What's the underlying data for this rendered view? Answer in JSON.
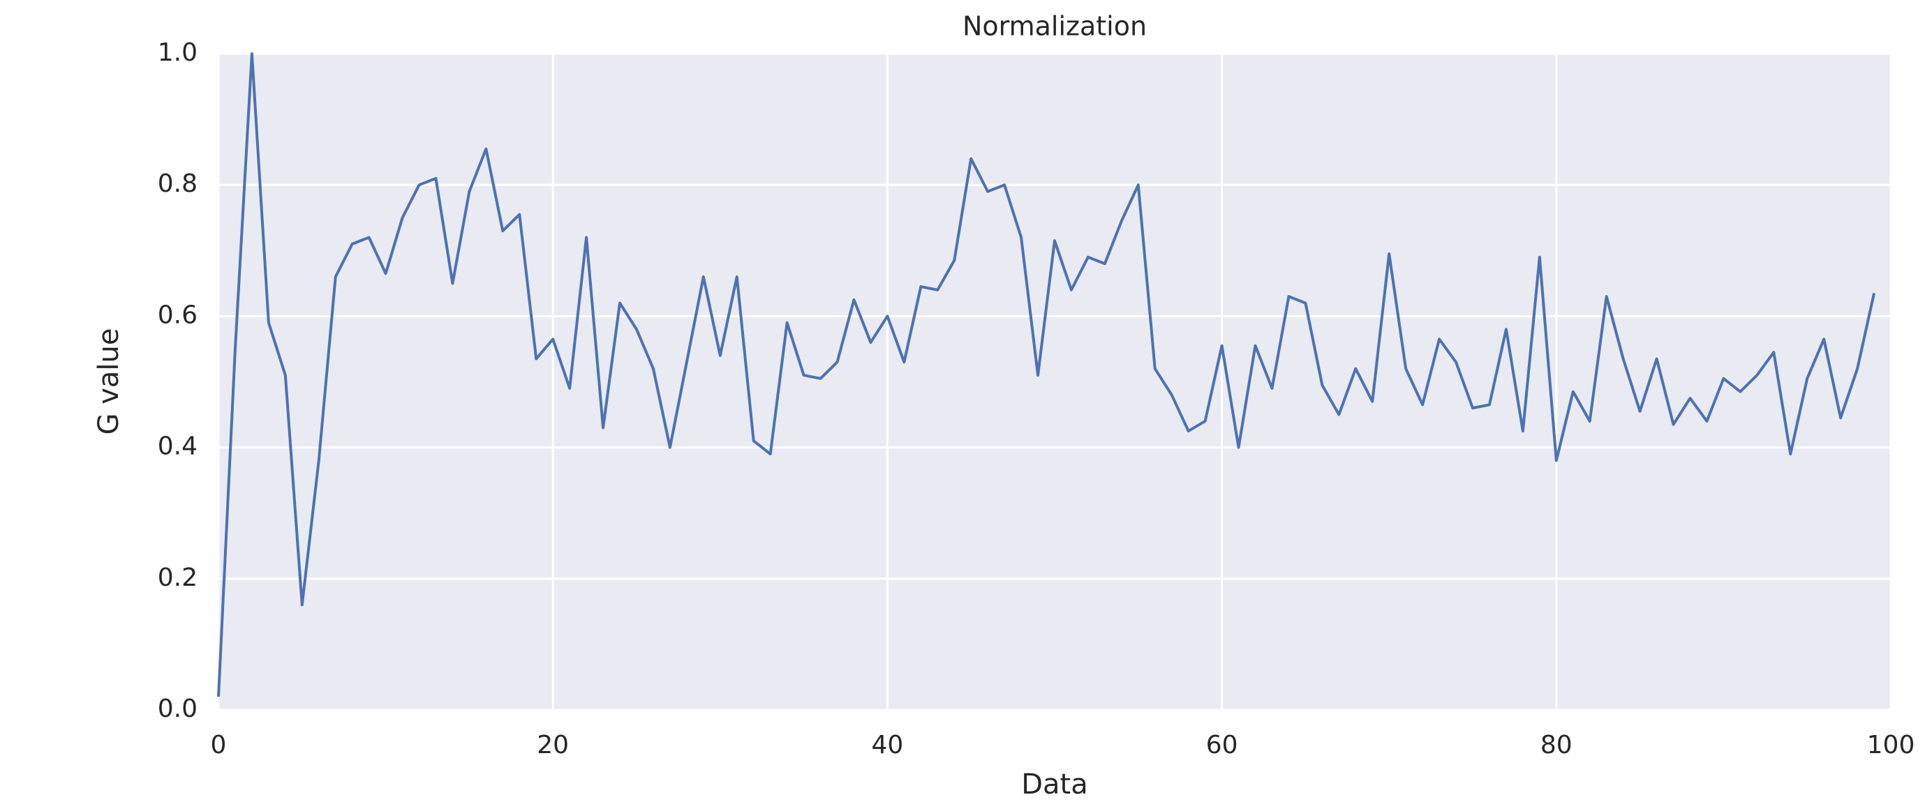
{
  "chart_data": {
    "type": "line",
    "title": "Normalization",
    "xlabel": "Data",
    "ylabel": "G value",
    "x": [
      0,
      1,
      2,
      3,
      4,
      5,
      6,
      7,
      8,
      9,
      10,
      11,
      12,
      13,
      14,
      15,
      16,
      17,
      18,
      19,
      20,
      21,
      22,
      23,
      24,
      25,
      26,
      27,
      28,
      29,
      30,
      31,
      32,
      33,
      34,
      35,
      36,
      37,
      38,
      39,
      40,
      41,
      42,
      43,
      44,
      45,
      46,
      47,
      48,
      49,
      50,
      51,
      52,
      53,
      54,
      55,
      56,
      57,
      58,
      59,
      60,
      61,
      62,
      63,
      64,
      65,
      66,
      67,
      68,
      69,
      70,
      71,
      72,
      73,
      74,
      75,
      76,
      77,
      78,
      79,
      80,
      81,
      82,
      83,
      84,
      85,
      86,
      87,
      88,
      89,
      90,
      91,
      92,
      93,
      94,
      95,
      96,
      97,
      98,
      99
    ],
    "values": [
      0.02,
      0.55,
      1.0,
      0.59,
      0.51,
      0.16,
      0.38,
      0.66,
      0.71,
      0.72,
      0.665,
      0.75,
      0.8,
      0.81,
      0.65,
      0.79,
      0.855,
      0.73,
      0.755,
      0.535,
      0.565,
      0.49,
      0.72,
      0.43,
      0.62,
      0.58,
      0.52,
      0.4,
      0.53,
      0.66,
      0.54,
      0.66,
      0.41,
      0.39,
      0.59,
      0.51,
      0.505,
      0.53,
      0.625,
      0.56,
      0.6,
      0.53,
      0.645,
      0.64,
      0.685,
      0.84,
      0.79,
      0.8,
      0.72,
      0.51,
      0.715,
      0.64,
      0.69,
      0.68,
      0.745,
      0.8,
      0.52,
      0.48,
      0.425,
      0.44,
      0.555,
      0.4,
      0.555,
      0.49,
      0.63,
      0.62,
      0.495,
      0.45,
      0.52,
      0.47,
      0.695,
      0.52,
      0.465,
      0.565,
      0.53,
      0.46,
      0.465,
      0.58,
      0.425,
      0.69,
      0.38,
      0.485,
      0.44,
      0.63,
      0.535,
      0.455,
      0.535,
      0.435,
      0.475,
      0.44,
      0.505,
      0.485,
      0.51,
      0.545,
      0.39,
      0.505,
      0.565,
      0.445,
      0.52,
      0.635
    ],
    "color": "#4c72b0",
    "xlim": [
      0,
      100
    ],
    "xticks": [
      0,
      20,
      40,
      60,
      80,
      100
    ],
    "ylim": [
      0,
      1
    ],
    "yticks": [
      {
        "value": 0,
        "label": "0.0"
      },
      0.2,
      0.4,
      0.6,
      0.8,
      {
        "value": 1,
        "label": "1.0"
      }
    ],
    "grid": true
  }
}
